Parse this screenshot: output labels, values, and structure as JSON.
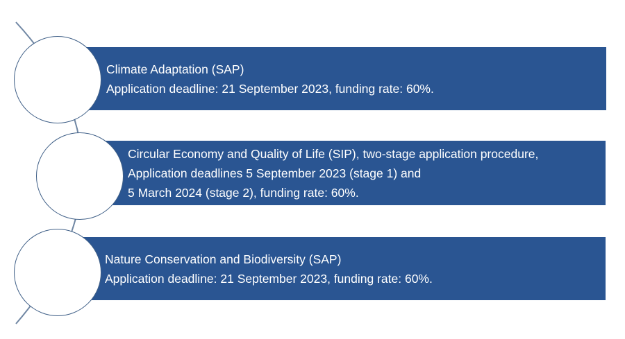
{
  "items": [
    {
      "title": "Climate Adaptation (SAP)",
      "lines": [
        "Application deadline: 21 September 2023, funding rate: 60%."
      ]
    },
    {
      "title": "Circular Economy and Quality of Life (SIP), two-stage application procedure,",
      "lines": [
        "Application deadlines 5 September 2023 (stage 1) and",
        "5 March 2024 (stage 2), funding rate: 60%."
      ]
    },
    {
      "title": "Nature Conservation and Biodiversity (SAP)",
      "lines": [
        "Application deadline: 21 September 2023, funding rate: 60%."
      ]
    }
  ],
  "colors": {
    "banner": "#2a5592",
    "circle_outline": "#3f5f87",
    "connector": "#6f86a3"
  }
}
